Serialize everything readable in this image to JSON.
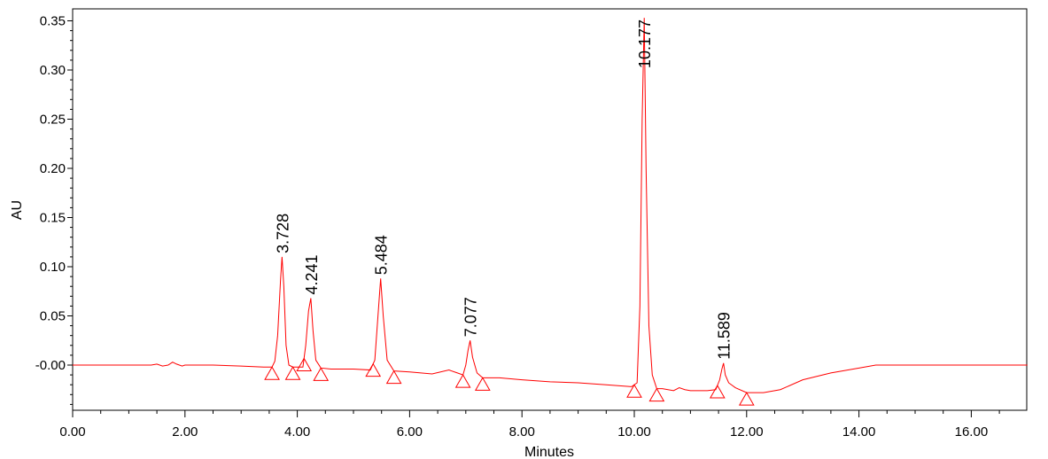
{
  "chart_data": {
    "type": "line",
    "title": "",
    "xlabel": "Minutes",
    "ylabel": "AU",
    "xlim": [
      0,
      17
    ],
    "ylim": [
      -0.045,
      0.36
    ],
    "x_ticks": [
      "0.00",
      "2.00",
      "4.00",
      "6.00",
      "8.00",
      "10.00",
      "12.00",
      "14.00",
      "16.00"
    ],
    "y_ticks": [
      "-0.00",
      "0.05",
      "0.10",
      "0.15",
      "0.20",
      "0.25",
      "0.30",
      "0.35"
    ],
    "line_color": "#ff0000",
    "peaks": [
      {
        "label": "3.728",
        "rt": 3.728,
        "height": 0.11
      },
      {
        "label": "4.241",
        "rt": 4.241,
        "height": 0.068
      },
      {
        "label": "5.484",
        "rt": 5.484,
        "height": 0.088
      },
      {
        "label": "7.077",
        "rt": 7.077,
        "height": 0.025
      },
      {
        "label": "10.177",
        "rt": 10.177,
        "height": 0.353
      },
      {
        "label": "11.589",
        "rt": 11.589,
        "height": 0.002
      }
    ],
    "baseline_markers": [
      3.55,
      3.92,
      4.12,
      4.42,
      5.35,
      5.72,
      6.95,
      7.3,
      10.0,
      10.4,
      11.48,
      12.0
    ],
    "series": [
      {
        "x": [
          0,
          1.0,
          1.4,
          1.5,
          1.6,
          1.7,
          1.78,
          1.85,
          1.95,
          2.0,
          2.5,
          3.0,
          3.4,
          3.55,
          3.6,
          3.65,
          3.7,
          3.728,
          3.76,
          3.8,
          3.85,
          3.92,
          4.0,
          4.1,
          4.15,
          4.2,
          4.241,
          4.28,
          4.33,
          4.42,
          4.6,
          5.0,
          5.3,
          5.38,
          5.43,
          5.484,
          5.53,
          5.6,
          5.72,
          6.0,
          6.4,
          6.7,
          6.85,
          6.95,
          7.0,
          7.04,
          7.077,
          7.12,
          7.2,
          7.3,
          7.6,
          8.0,
          8.5,
          9.0,
          9.5,
          9.95,
          10.05,
          10.1,
          10.14,
          10.177,
          10.21,
          10.26,
          10.32,
          10.4,
          10.5,
          10.7,
          10.8,
          10.9,
          11.0,
          11.3,
          11.45,
          11.52,
          11.56,
          11.589,
          11.62,
          11.68,
          11.8,
          12.0,
          12.3,
          12.6,
          13.0,
          13.5,
          14.0,
          14.3,
          14.6,
          15.0,
          16.0,
          17.0
        ],
        "y": [
          0.0,
          0.0,
          0.0,
          0.001,
          -0.001,
          0.0,
          0.003,
          0.001,
          -0.001,
          0.0,
          0.0,
          -0.001,
          -0.002,
          -0.002,
          0.004,
          0.03,
          0.085,
          0.11,
          0.08,
          0.02,
          0.0,
          -0.002,
          -0.002,
          -0.002,
          0.02,
          0.055,
          0.068,
          0.035,
          0.005,
          -0.003,
          -0.004,
          -0.004,
          -0.005,
          0.005,
          0.045,
          0.088,
          0.05,
          0.005,
          -0.006,
          -0.007,
          -0.009,
          -0.005,
          -0.008,
          -0.01,
          0.0,
          0.015,
          0.025,
          0.008,
          -0.008,
          -0.013,
          -0.013,
          -0.015,
          -0.017,
          -0.018,
          -0.02,
          -0.022,
          -0.018,
          0.06,
          0.25,
          0.353,
          0.2,
          0.04,
          -0.01,
          -0.024,
          -0.024,
          -0.026,
          -0.023,
          -0.025,
          -0.026,
          -0.026,
          -0.025,
          -0.015,
          -0.004,
          0.002,
          -0.01,
          -0.018,
          -0.023,
          -0.028,
          -0.028,
          -0.025,
          -0.015,
          -0.008,
          -0.003,
          0.0,
          0.0,
          0.0,
          0.0,
          0.0
        ]
      }
    ]
  }
}
